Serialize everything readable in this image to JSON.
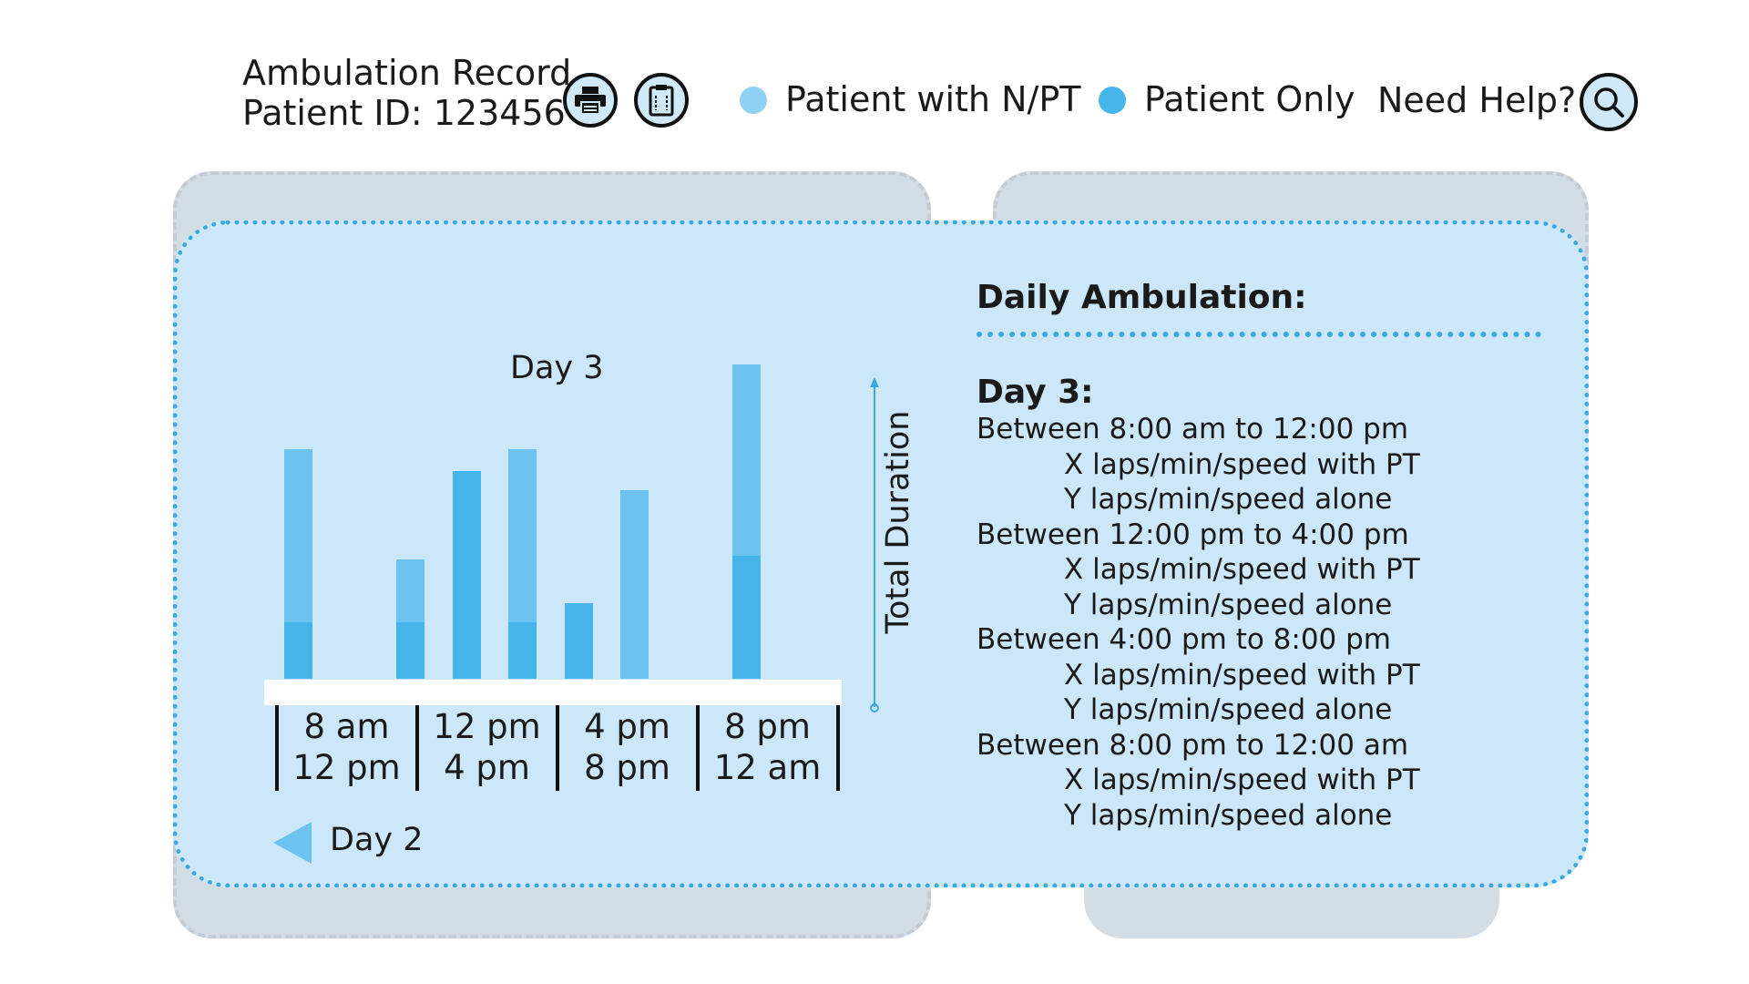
{
  "header": {
    "title": "Ambulation Record",
    "patient_id": "Patient ID: 123456",
    "help_label": "Need Help?"
  },
  "toolbar": {
    "print_icon": "printer-icon",
    "clipboard_icon": "clipboard-icon",
    "help_icon": "search-icon"
  },
  "legend": [
    {
      "label": "Patient with N/PT",
      "color": "#8fd0f3"
    },
    {
      "label": "Patient Only",
      "color": "#45b5ea"
    }
  ],
  "chart_data": {
    "type": "bar",
    "title": "Day 3",
    "ylabel": "Total Duration",
    "categories": [
      {
        "line1": "8 am",
        "line2": "12 pm"
      },
      {
        "line1": "12 pm",
        "line2": "4 pm"
      },
      {
        "line1": "4 pm",
        "line2": "8 pm"
      },
      {
        "line1": "8 pm",
        "line2": "12 am"
      }
    ],
    "bars": [
      {
        "x": 1,
        "with_pt": 0.73,
        "alone": 0.18
      },
      {
        "x": 3,
        "with_pt": 0.38,
        "alone": 0.18
      },
      {
        "x": 4,
        "with_pt": 0.66,
        "alone": 0.66
      },
      {
        "x": 5,
        "with_pt": 0.73,
        "alone": 0.18
      },
      {
        "x": 6,
        "with_pt": 0.24,
        "alone": 0.24
      },
      {
        "x": 7,
        "with_pt": 0.6,
        "alone": 0.0
      },
      {
        "x": 9,
        "with_pt": 1.0,
        "alone": 0.39
      }
    ],
    "colors": {
      "with_pt": "#6cc3ef",
      "alone": "#45b5ea"
    }
  },
  "nav": {
    "prev_label": "Day 2"
  },
  "summary": {
    "heading": "Daily Ambulation:",
    "day_label": "Day 3:",
    "lines": [
      {
        "text": "Between 8:00 am to 12:00 pm",
        "indent": false
      },
      {
        "text": "X laps/min/speed with PT",
        "indent": true
      },
      {
        "text": "Y laps/min/speed alone",
        "indent": true
      },
      {
        "text": "Between 12:00 pm to 4:00 pm",
        "indent": false
      },
      {
        "text": "X laps/min/speed with PT",
        "indent": true
      },
      {
        "text": "Y laps/min/speed alone",
        "indent": true
      },
      {
        "text": "Between 4:00 pm to 8:00 pm",
        "indent": false
      },
      {
        "text": "X laps/min/speed with PT",
        "indent": true
      },
      {
        "text": "Y laps/min/speed alone",
        "indent": true
      },
      {
        "text": "Between 8:00 pm to 12:00 am",
        "indent": false
      },
      {
        "text": "X laps/min/speed with PT",
        "indent": true
      },
      {
        "text": "Y laps/min/speed alone",
        "indent": true
      }
    ]
  }
}
